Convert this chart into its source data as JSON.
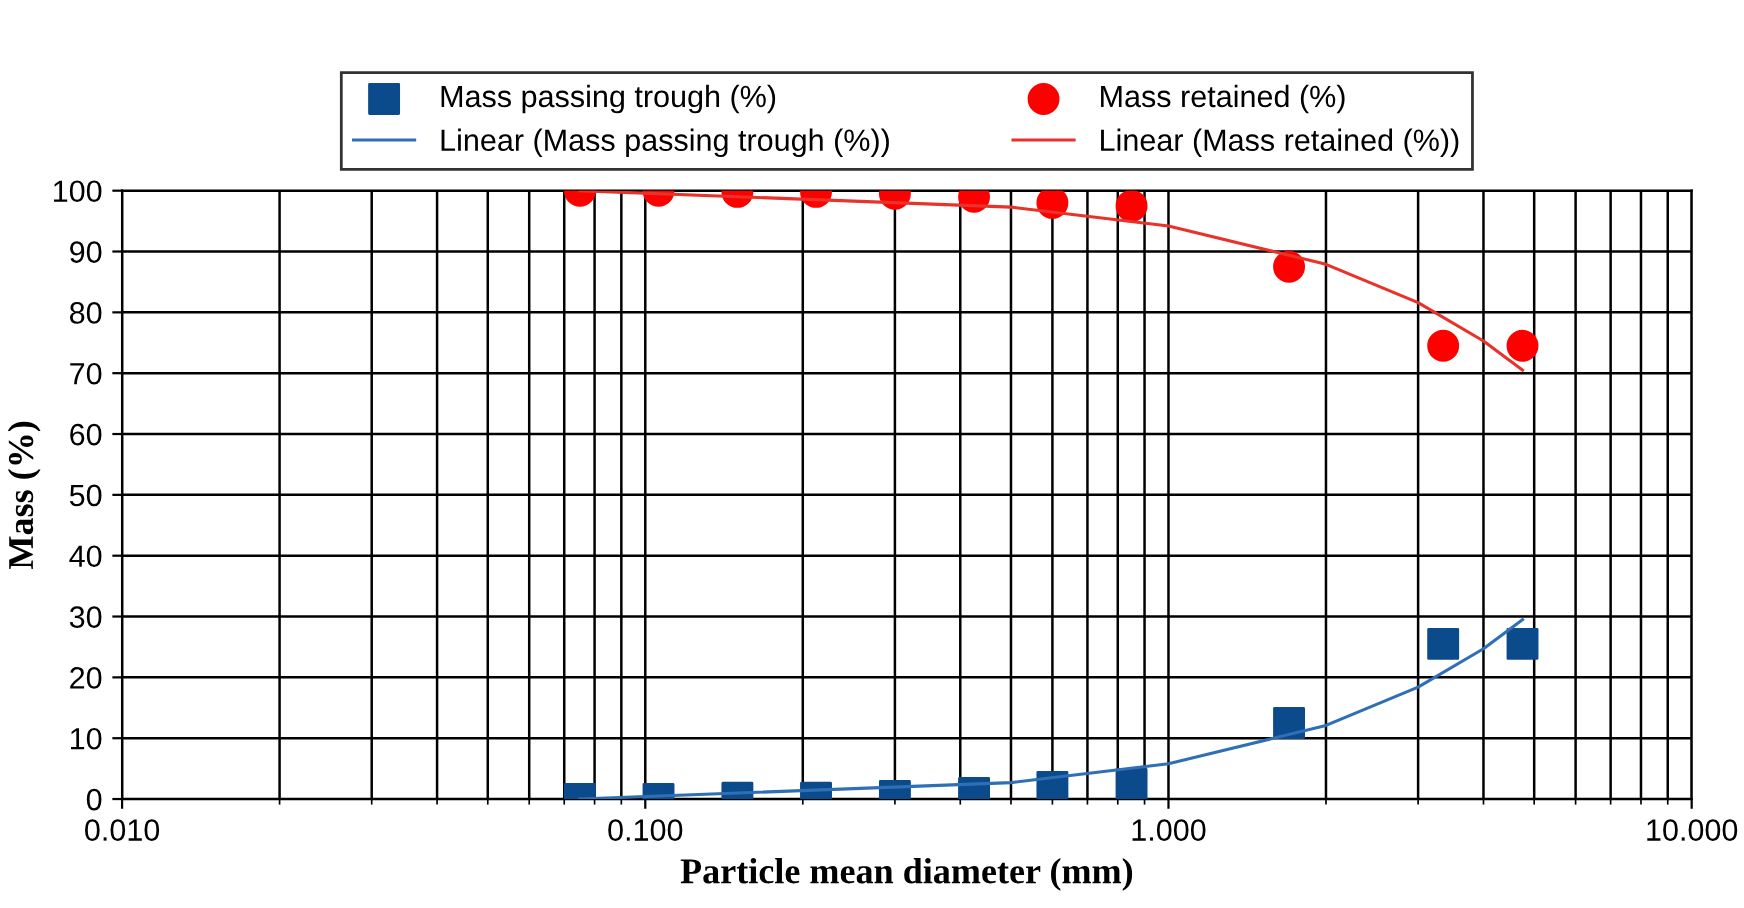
{
  "chart_data": {
    "type": "scatter",
    "xlabel": "Particle mean diameter (mm)",
    "ylabel": "Mass (%)",
    "log": "x",
    "xlim": [
      0.01,
      10
    ],
    "xticks": [
      {
        "value": 0.01,
        "label": "0.010"
      },
      {
        "value": 0.1,
        "label": "0.100"
      },
      {
        "value": 1,
        "label": "1.000"
      },
      {
        "value": 10,
        "label": "10.000"
      }
    ],
    "ylim": [
      0,
      100
    ],
    "yticks": [
      0,
      10,
      20,
      30,
      40,
      50,
      60,
      70,
      80,
      90,
      100
    ],
    "grid": true,
    "legend": "top",
    "x": [
      0.075,
      0.106,
      0.15,
      0.212,
      0.3,
      0.425,
      0.6,
      0.85,
      1.7,
      3.35,
      4.75
    ],
    "series": [
      {
        "name": "Mass passing trough (%)",
        "color": "#0b4a8b",
        "marker": "square",
        "values": [
          0,
          0,
          0.2,
          0.2,
          0.5,
          1,
          2,
          2.5,
          12.5,
          25.5,
          25.5
        ]
      },
      {
        "name": "Linear (Mass passing trough (%))",
        "type": "line",
        "color": "#2f6fb5",
        "x": [
          0.075,
          0.5,
          1,
          2,
          3,
          4,
          4.75
        ],
        "values": [
          0,
          2.7,
          5.8,
          12.1,
          18.4,
          24.7,
          29.5
        ]
      },
      {
        "name": "Mass retained (%)",
        "color": "#ff0000",
        "marker": "circle",
        "values": [
          100,
          100,
          99.8,
          99.8,
          99.5,
          99,
          98,
          97.5,
          87.5,
          74.5,
          74.5
        ]
      },
      {
        "name": "Linear (Mass retained (%))",
        "type": "line",
        "color": "#e8322a",
        "x": [
          0.075,
          0.5,
          1,
          2,
          3,
          4,
          4.75
        ],
        "values": [
          100,
          97.3,
          94.2,
          87.9,
          81.6,
          75.3,
          70.5
        ]
      }
    ]
  }
}
